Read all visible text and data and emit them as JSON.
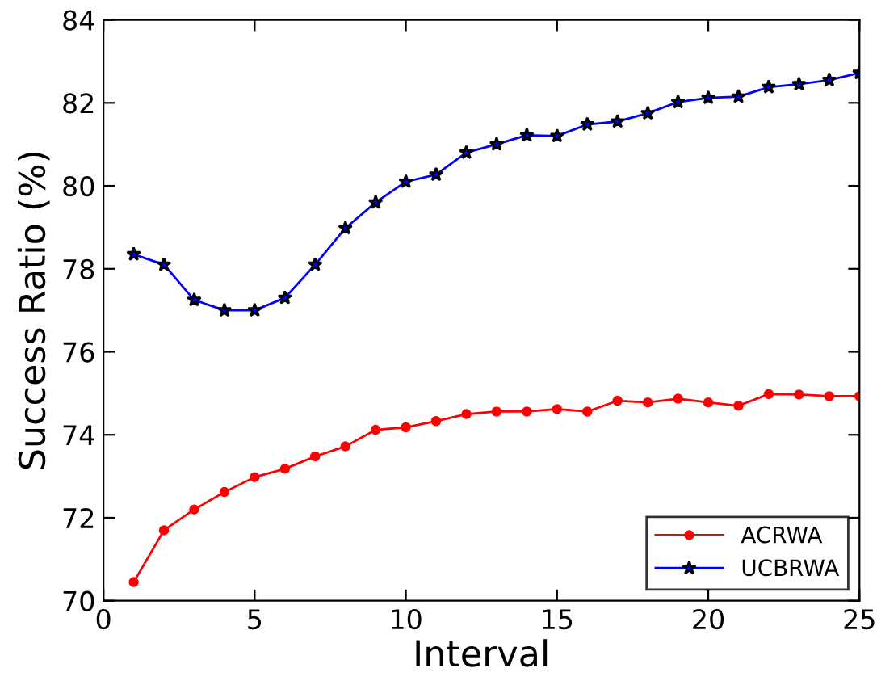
{
  "chart_data": {
    "type": "line",
    "xlabel": "Interval",
    "ylabel": "Success Ratio (%)",
    "x": [
      1,
      2,
      3,
      4,
      5,
      6,
      7,
      8,
      9,
      10,
      11,
      12,
      13,
      14,
      15,
      16,
      17,
      18,
      19,
      20,
      21,
      22,
      23,
      24,
      25
    ],
    "series": [
      {
        "name": "ACRWA",
        "color": "#ff0000",
        "marker": "circle",
        "values": [
          70.45,
          71.7,
          72.2,
          72.62,
          72.98,
          73.18,
          73.48,
          73.72,
          74.12,
          74.18,
          74.33,
          74.5,
          74.56,
          74.56,
          74.62,
          74.56,
          74.82,
          74.78,
          74.87,
          74.78,
          74.7,
          74.98,
          74.97,
          74.93,
          74.93
        ]
      },
      {
        "name": "UCBRWA",
        "color": "#0000ff",
        "marker": "star",
        "values": [
          78.35,
          78.1,
          77.25,
          77.0,
          77.0,
          77.3,
          78.1,
          78.98,
          79.6,
          80.1,
          80.27,
          80.8,
          81.0,
          81.22,
          81.2,
          81.48,
          81.55,
          81.75,
          82.02,
          82.12,
          82.15,
          82.38,
          82.45,
          82.55,
          82.72
        ]
      }
    ],
    "xlim": [
      0,
      25
    ],
    "xticks": [
      0,
      5,
      10,
      15,
      20,
      25
    ],
    "ylim": [
      70,
      84
    ],
    "yticks": [
      70,
      72,
      74,
      76,
      78,
      80,
      82,
      84
    ],
    "grid": false,
    "legend": "bottom right",
    "line_style": "solid"
  }
}
